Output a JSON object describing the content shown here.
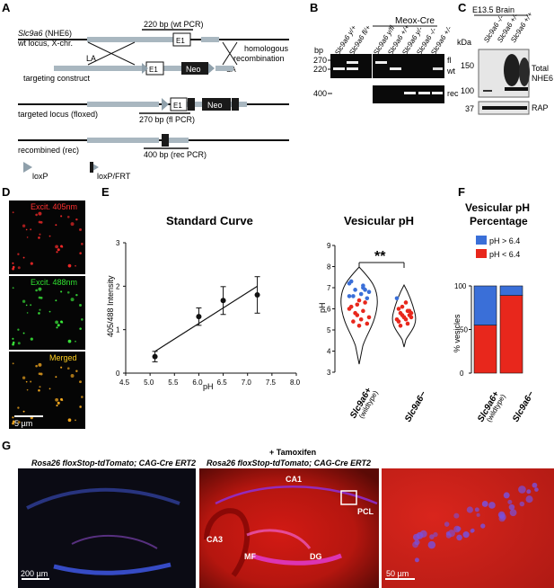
{
  "panels": {
    "A": "A",
    "B": "B",
    "C": "C",
    "D": "D",
    "E": "E",
    "F": "F",
    "G": "G"
  },
  "panelA": {
    "gene": "Slc9a6",
    "gene_suffix": " (NHE6)",
    "wt_locus": "wt locus, X-chr.",
    "wt_pcr": "220 bp (wt PCR)",
    "e1": "E1",
    "la": "LA",
    "sa": "SA",
    "neo": "Neo",
    "homologous": "homologous",
    "recombination": "recombination",
    "targeting": "targeting construct",
    "targeted": "targeted locus (floxed)",
    "fl_pcr": "270 bp (fl PCR)",
    "recombined": "recombined (rec)",
    "rec_pcr": "400 bp (rec PCR)",
    "loxp": "loxP",
    "loxp_frt": "loxP/FRT"
  },
  "panelB": {
    "title": "Meox-Cre",
    "bp": "bp",
    "ladder": [
      "270",
      "220",
      "400"
    ],
    "lanes": [
      "Slc9a6 y/+",
      "Slc9a6 fl/+",
      "Slc9a6 y/fl",
      "Slc9a6 +/+",
      "Slc9a6 y/-",
      "Slc9a6 -/-",
      "Slc9a6 +/-"
    ],
    "band_labels": [
      "fl",
      "wt",
      "rec"
    ]
  },
  "panelC": {
    "title": "E13.5 Brain",
    "lanes": [
      "Slc9a6 -/-",
      "Slc9a6 +/-",
      "Slc9a6 +/+"
    ],
    "kda": "kDa",
    "markers": [
      "150",
      "100",
      "37"
    ],
    "total": "Total",
    "nhe6": "NHE6",
    "rap": "RAP"
  },
  "panelD": {
    "labels": [
      "Excit. 405nm",
      "Excit. 488nm",
      "Merged"
    ],
    "scalebar": "5 µm"
  },
  "panelE": {
    "title_left": "Standard Curve",
    "title_right": "Vesicular pH",
    "sig": "**",
    "violin_y_ticks": [
      "3",
      "4",
      "5",
      "6",
      "7",
      "8",
      "9"
    ],
    "violin_ylabel": "pH",
    "violin_cat1": "Slc9a6+",
    "violin_cat1b": "(wildtype)",
    "violin_cat2": "Slc9a6−"
  },
  "panelF": {
    "title1": "Vesicular pH",
    "title2": "Percentage",
    "legend": [
      "pH > 6.4",
      "pH < 6.4"
    ],
    "ylabel": "% vesicles",
    "yticks": [
      "0",
      "50",
      "100"
    ],
    "cat1": "Slc9a6+",
    "cat1b": "(wildtype)",
    "cat2": "Slc9a6−"
  },
  "panelG": {
    "left_title": "Rosa26 floxStop-tdTomato; CAG-Cre ERT2",
    "tamoxifen": "+ Tamoxifen",
    "right_title": "Rosa26 floxStop-tdTomato; CAG-Cre ERT2",
    "regions": [
      "CA1",
      "PCL",
      "CA3",
      "MF",
      "DG"
    ],
    "scale1": "200 µm",
    "scale2": "50 µm"
  },
  "chart_data": [
    {
      "type": "scatter",
      "title": "Standard Curve",
      "xlabel": "pH",
      "ylabel": "405/488 Intensity",
      "xlim": [
        4.5,
        8.0
      ],
      "ylim": [
        0,
        3
      ],
      "xticks": [
        4.5,
        5.0,
        5.5,
        6.0,
        6.5,
        7.0,
        7.5,
        8.0
      ],
      "yticks": [
        0,
        1,
        2,
        3
      ],
      "x": [
        5.1,
        6.0,
        6.5,
        7.2
      ],
      "y": [
        0.38,
        1.3,
        1.67,
        1.8
      ],
      "err": [
        0.12,
        0.2,
        0.32,
        0.42
      ],
      "fit": {
        "x": [
          5.1,
          7.2
        ],
        "y": [
          0.5,
          2.0
        ]
      }
    },
    {
      "type": "bar",
      "title": "Vesicular pH Percentage",
      "ylabel": "% vesicles",
      "ylim": [
        0,
        100
      ],
      "categories": [
        "Slc9a6+ (wildtype)",
        "Slc9a6−"
      ],
      "series": [
        {
          "name": "pH > 6.4",
          "values": [
            45,
            11
          ],
          "color": "#3a6fd8"
        },
        {
          "name": "pH < 6.4",
          "values": [
            55,
            89
          ],
          "color": "#e8271c"
        }
      ]
    }
  ]
}
